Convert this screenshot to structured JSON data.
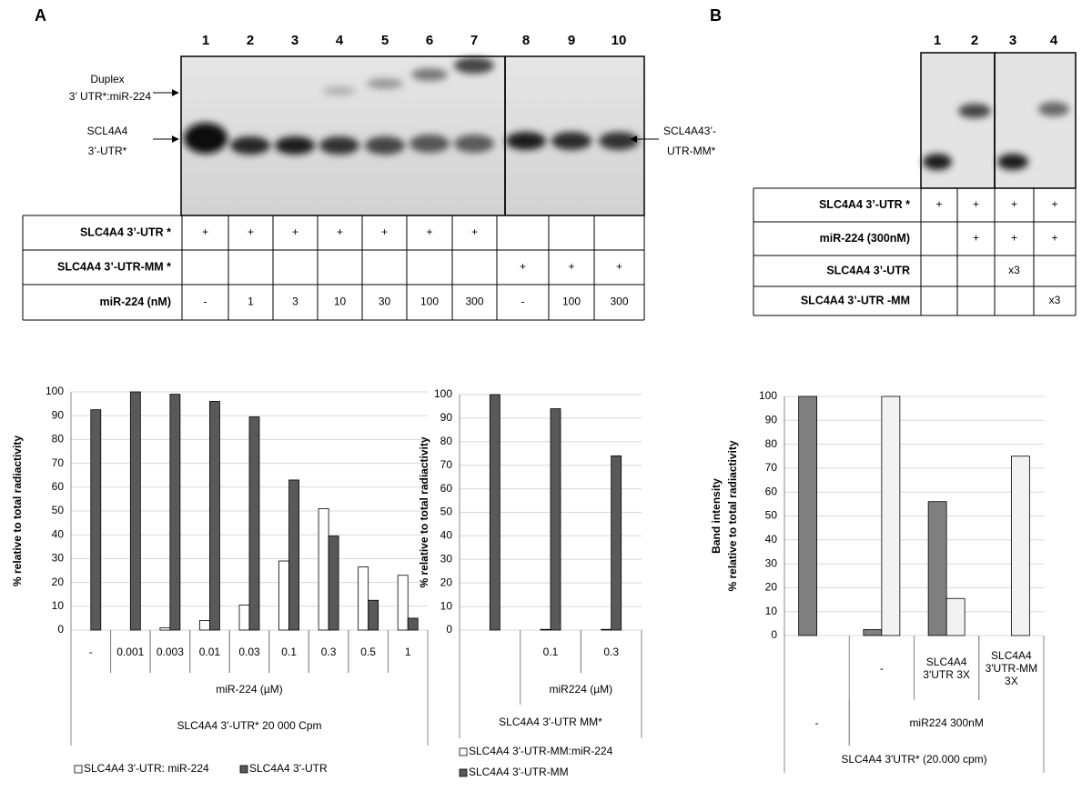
{
  "panel_a": {
    "label": "A",
    "lanes": [
      "1",
      "2",
      "3",
      "4",
      "5",
      "6",
      "7",
      "8",
      "9",
      "10"
    ],
    "gel_labels": {
      "duplex": [
        "Duplex",
        "3’ UTR*:miR-224"
      ],
      "utr": [
        "SCL4A4",
        "3’-UTR*"
      ],
      "mm": [
        "SCL4A43’-",
        "UTR-MM*"
      ]
    },
    "table": {
      "rows": [
        {
          "label": "SLC4A4 3’-UTR *",
          "cells": [
            "+",
            "+",
            "+",
            "+",
            "+",
            "+",
            "+",
            null,
            null,
            null
          ]
        },
        {
          "label": "SLC4A4 3’-UTR-MM *",
          "cells": [
            null,
            null,
            null,
            null,
            null,
            null,
            null,
            "+",
            "+",
            "+"
          ]
        },
        {
          "label": "miR-224 (nM)",
          "cells": [
            "-",
            "1",
            "3",
            "10",
            "30",
            "100",
            "300",
            "-",
            "100",
            "300"
          ]
        }
      ]
    }
  },
  "panel_b": {
    "label": "B",
    "lanes": [
      "1",
      "2",
      "3",
      "4"
    ],
    "table": {
      "rows": [
        {
          "label": "SLC4A4 3’-UTR *",
          "cells": [
            "+",
            "+",
            "+",
            "+"
          ]
        },
        {
          "label": "miR-224 (300nM)",
          "cells": [
            null,
            "+",
            "+",
            "+"
          ]
        },
        {
          "label": "SLC4A4 3’-UTR",
          "cells": [
            null,
            null,
            "x3",
            null
          ]
        },
        {
          "label": "SLC4A4 3’-UTR -MM",
          "cells": [
            null,
            null,
            null,
            "x3"
          ]
        }
      ]
    }
  },
  "chart_data": [
    {
      "type": "bar",
      "ylabel": "% relative to total radiactivity",
      "categories": [
        "-",
        "0.001",
        "0.003",
        "0.01",
        "0.03",
        "0.1",
        "0.3",
        "0.5",
        "1"
      ],
      "x_groups": [
        "miR-224 (µM)"
      ],
      "x_label": "SLC4A4 3'-UTR* 20 000 Cpm",
      "series": [
        {
          "name": "SLC4A4 3'-UTR: miR-224",
          "color": "#ffffff",
          "values": [
            0,
            0,
            1,
            4,
            10.5,
            29,
            51,
            26.5,
            23
          ]
        },
        {
          "name": "SLC4A4 3'-UTR",
          "color": "#595959",
          "values": [
            92.5,
            100,
            99,
            96,
            89.5,
            63,
            39.5,
            12.5,
            5
          ]
        }
      ],
      "ylim": [
        0,
        100
      ],
      "yticks": [
        0,
        10,
        20,
        30,
        40,
        50,
        60,
        70,
        80,
        90,
        100
      ],
      "grid": true
    },
    {
      "type": "bar",
      "ylabel": "% relative to total radiactivity",
      "categories": [
        null,
        "0.1",
        "0.3"
      ],
      "x_groups": [
        "miR224 (µM)"
      ],
      "x_label": "SLC4A4 3'-UTR MM*",
      "series": [
        {
          "name": "SLC4A4 3'-UTR-MM:miR-224",
          "color": "#ffffff",
          "values": [
            0,
            0.3,
            0.3
          ]
        },
        {
          "name": "SLC4A4 3'-UTR-MM",
          "color": "#595959",
          "values": [
            100,
            94,
            74
          ]
        }
      ],
      "ylim": [
        0,
        100
      ],
      "yticks": [
        0,
        10,
        20,
        30,
        40,
        50,
        60,
        70,
        80,
        90,
        100
      ],
      "grid": true
    },
    {
      "type": "bar",
      "ylabel": [
        "Band intensity",
        "% relative to total radiactivity"
      ],
      "categories": [
        null,
        "-",
        "SLC4A4 3'UTR 3X",
        "SLC4A4 3'UTR-MM 3X"
      ],
      "x_groups": [
        "-",
        "miR224 300nM"
      ],
      "x_label": "SLC4A4 3'UTR* (20.000 cpm)",
      "series": [
        {
          "color": "#808080",
          "values": [
            100,
            2.5,
            56,
            null
          ]
        },
        {
          "color": "#f2f2f2",
          "values": [
            null,
            100,
            15.5,
            75
          ]
        }
      ],
      "ylim": [
        0,
        100
      ],
      "yticks": [
        0,
        10,
        20,
        30,
        40,
        50,
        60,
        70,
        80,
        90,
        100
      ],
      "grid": true
    }
  ]
}
